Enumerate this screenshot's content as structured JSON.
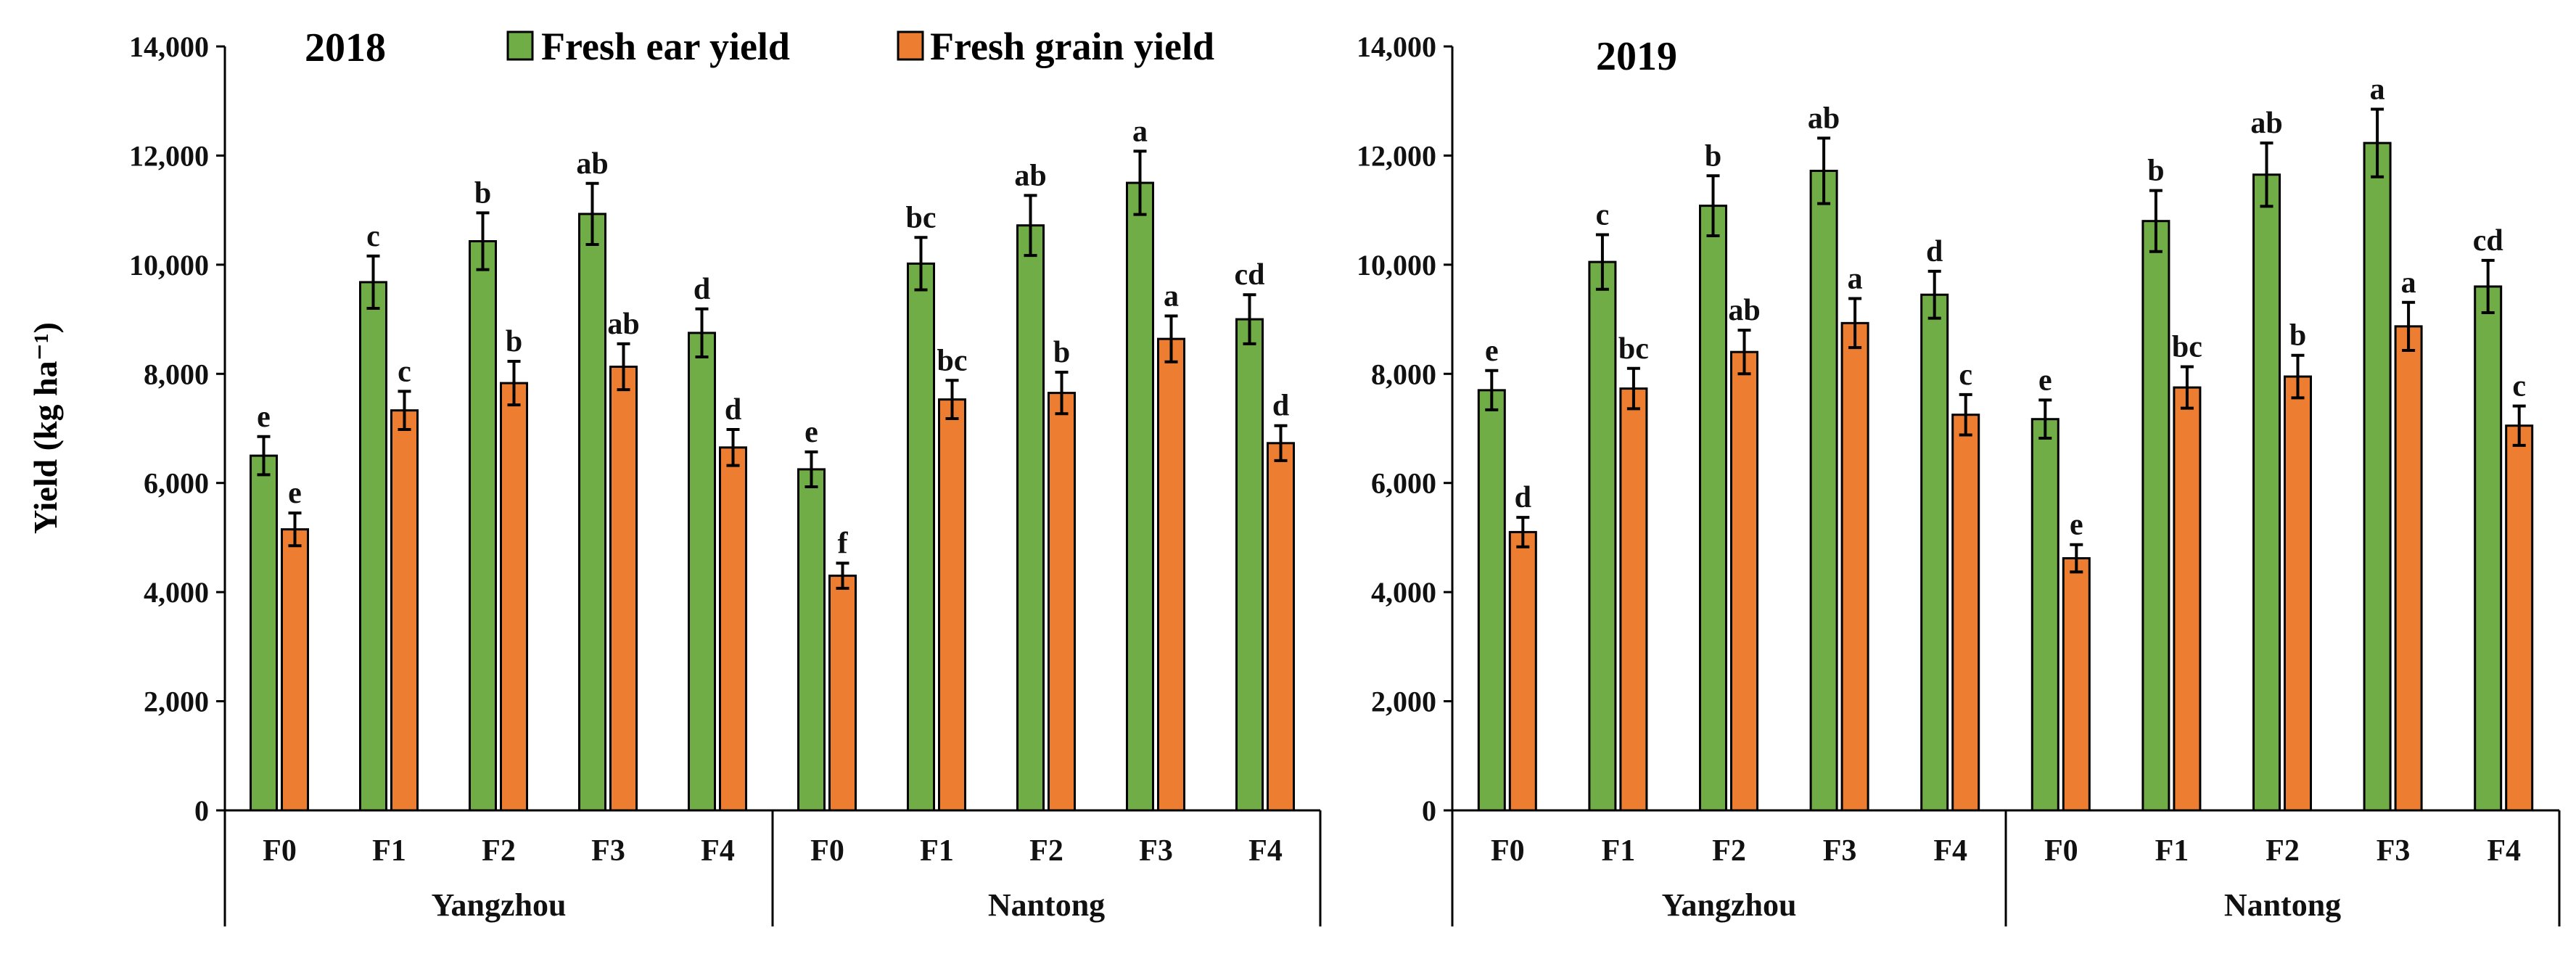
{
  "chart_data": {
    "type": "bar",
    "ylabel": "Yield (kg ha⁻¹)",
    "ylim": [
      0,
      14000
    ],
    "yticks": [
      0,
      2000,
      4000,
      6000,
      8000,
      10000,
      12000,
      14000
    ],
    "ytick_labels": [
      "0",
      "2,000",
      "4,000",
      "6,000",
      "8,000",
      "10,000",
      "12,000",
      "14,000"
    ],
    "legend": {
      "placement": "top",
      "entries": [
        {
          "name": "Fresh ear yield",
          "color": "#70AD47"
        },
        {
          "name": "Fresh grain yield",
          "color": "#ED7D31"
        }
      ]
    },
    "panels": [
      {
        "title": "2018",
        "groups": [
          {
            "location": "Yangzhou",
            "categories": [
              "F0",
              "F1",
              "F2",
              "F3",
              "F4"
            ],
            "series": [
              {
                "name": "Fresh ear yield",
                "values": [
                  6500,
                  9680,
                  10430,
                  10930,
                  8750
                ],
                "errors": [
                  350,
                  480,
                  520,
                  560,
                  440
                ],
                "letters": [
                  "e",
                  "c",
                  "b",
                  "ab",
                  "d"
                ]
              },
              {
                "name": "Fresh grain yield",
                "values": [
                  5150,
                  7330,
                  7830,
                  8130,
                  6650
                ],
                "errors": [
                  300,
                  350,
                  400,
                  420,
                  330
                ],
                "letters": [
                  "e",
                  "c",
                  "b",
                  "ab",
                  "d"
                ]
              }
            ]
          },
          {
            "location": "Nantong",
            "categories": [
              "F0",
              "F1",
              "F2",
              "F3",
              "F4"
            ],
            "series": [
              {
                "name": "Fresh ear yield",
                "values": [
                  6250,
                  10020,
                  10720,
                  11500,
                  9000
                ],
                "errors": [
                  320,
                  480,
                  550,
                  580,
                  450
                ],
                "letters": [
                  "e",
                  "bc",
                  "ab",
                  "a",
                  "cd"
                ]
              },
              {
                "name": "Fresh grain yield",
                "values": [
                  4300,
                  7530,
                  7650,
                  8640,
                  6730
                ],
                "errors": [
                  230,
                  350,
                  380,
                  420,
                  320
                ],
                "letters": [
                  "f",
                  "bc",
                  "b",
                  "a",
                  "d"
                ]
              }
            ]
          }
        ]
      },
      {
        "title": "2019",
        "groups": [
          {
            "location": "Yangzhou",
            "categories": [
              "F0",
              "F1",
              "F2",
              "F3",
              "F4"
            ],
            "series": [
              {
                "name": "Fresh ear yield",
                "values": [
                  7700,
                  10050,
                  11080,
                  11720,
                  9450
                ],
                "errors": [
                  360,
                  500,
                  550,
                  600,
                  430
                ],
                "letters": [
                  "e",
                  "c",
                  "b",
                  "ab",
                  "d"
                ]
              },
              {
                "name": "Fresh grain yield",
                "values": [
                  5100,
                  7730,
                  8400,
                  8930,
                  7250
                ],
                "errors": [
                  270,
                  370,
                  400,
                  450,
                  370
                ],
                "letters": [
                  "d",
                  "bc",
                  "ab",
                  "a",
                  "c"
                ]
              }
            ]
          },
          {
            "location": "Nantong",
            "categories": [
              "F0",
              "F1",
              "F2",
              "F3",
              "F4"
            ],
            "series": [
              {
                "name": "Fresh ear yield",
                "values": [
                  7170,
                  10800,
                  11650,
                  12230,
                  9600
                ],
                "errors": [
                  350,
                  560,
                  580,
                  620,
                  480
                ],
                "letters": [
                  "e",
                  "b",
                  "ab",
                  "a",
                  "cd"
                ]
              },
              {
                "name": "Fresh grain yield",
                "values": [
                  4620,
                  7750,
                  7950,
                  8870,
                  7050
                ],
                "errors": [
                  250,
                  380,
                  390,
                  440,
                  360
                ],
                "letters": [
                  "e",
                  "bc",
                  "b",
                  "a",
                  "c"
                ]
              }
            ]
          }
        ]
      }
    ]
  }
}
